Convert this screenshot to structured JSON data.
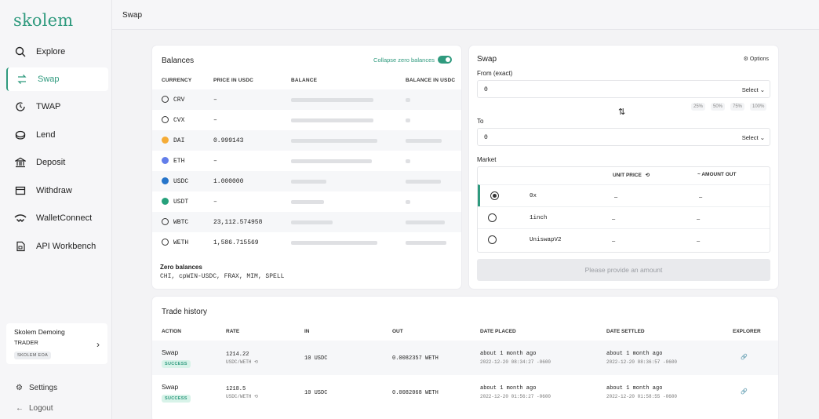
{
  "brand": {
    "logo": "skolem",
    "accent": "#2f9a7e"
  },
  "sidebar": {
    "items": [
      {
        "label": "Explore",
        "icon": "search-icon"
      },
      {
        "label": "Swap",
        "icon": "swap-arrows-icon"
      },
      {
        "label": "TWAP",
        "icon": "twap-icon"
      },
      {
        "label": "Lend",
        "icon": "lend-icon"
      },
      {
        "label": "Deposit",
        "icon": "bank-icon"
      },
      {
        "label": "Withdraw",
        "icon": "withdraw-icon"
      },
      {
        "label": "WalletConnect",
        "icon": "walletconnect-icon"
      },
      {
        "label": "API Workbench",
        "icon": "api-icon"
      }
    ],
    "account": {
      "name": "Skolem Demoing",
      "role": "TRADER",
      "badge": "SKOLEM EOA"
    },
    "settings": "Settings",
    "logout": "Logout"
  },
  "topbar": {
    "title": "Swap"
  },
  "balances": {
    "title": "Balances",
    "collapse_label": "Collapse zero balances",
    "headers": [
      "CURRENCY",
      "PRICE IN USDC",
      "BALANCE",
      "BALANCE IN USDC"
    ],
    "rows": [
      {
        "currency": "CRV",
        "price": "–",
        "icon": "crv-icon",
        "color": "#ffffff"
      },
      {
        "currency": "CVX",
        "price": "–",
        "icon": "cvx-icon",
        "color": "#ffffff"
      },
      {
        "currency": "DAI",
        "price": "0.999143",
        "icon": "dai-icon",
        "color": "#f5ac37"
      },
      {
        "currency": "ETH",
        "price": "–",
        "icon": "eth-icon",
        "color": "#627eea"
      },
      {
        "currency": "USDC",
        "price": "1.000000",
        "icon": "usdc-icon",
        "color": "#2775ca"
      },
      {
        "currency": "USDT",
        "price": "–",
        "icon": "usdt-icon",
        "color": "#26a17b"
      },
      {
        "currency": "WBTC",
        "price": "23,112.574958",
        "icon": "wbtc-icon",
        "color": "#ffffff"
      },
      {
        "currency": "WETH",
        "price": "1,586.715569",
        "icon": "weth-icon",
        "color": "#ffffff"
      }
    ],
    "zero_title": "Zero balances",
    "zero_list": "CHI, cpWIN-USDC, FRAX, MIM, SPELL"
  },
  "swap": {
    "title": "Swap",
    "options": "Options",
    "from_label": "From (exact)",
    "from_value": "0",
    "to_label": "To",
    "to_value": "0",
    "select_label": "Select",
    "percents": [
      "25%",
      "50%",
      "75%",
      "100%"
    ],
    "market_label": "Market",
    "market_headers": {
      "unit_price": "UNIT PRICE",
      "amount_out": "~ AMOUNT OUT"
    },
    "markets": [
      {
        "name": "0x",
        "unit_price": "–",
        "amount_out": "–"
      },
      {
        "name": "1inch",
        "unit_price": "–",
        "amount_out": "–"
      },
      {
        "name": "UniswapV2",
        "unit_price": "–",
        "amount_out": "–"
      }
    ],
    "submit": "Please provide an amount"
  },
  "trades": {
    "title": "Trade history",
    "headers": [
      "ACTION",
      "RATE",
      "IN",
      "OUT",
      "DATE PLACED",
      "DATE SETTLED",
      "EXPLORER"
    ],
    "rows": [
      {
        "action": "Swap",
        "status": "SUCCESS",
        "rate": "1214.22",
        "pair": "USDC/WETH",
        "in": "10 USDC",
        "out": "0.0082357 WETH",
        "placed_rel": "about 1 month ago",
        "placed_abs": "2022-12-20 08:34:27 -0600",
        "settled_rel": "about 1 month ago",
        "settled_abs": "2022-12-20 08:36:57 -0600"
      },
      {
        "action": "Swap",
        "status": "SUCCESS",
        "rate": "1218.5",
        "pair": "USDC/WETH",
        "in": "10 USDC",
        "out": "0.0082068 WETH",
        "placed_rel": "about 1 month ago",
        "placed_abs": "2022-12-20 01:56:27 -0600",
        "settled_rel": "about 1 month ago",
        "settled_abs": "2022-12-20 01:58:55 -0600"
      }
    ]
  }
}
